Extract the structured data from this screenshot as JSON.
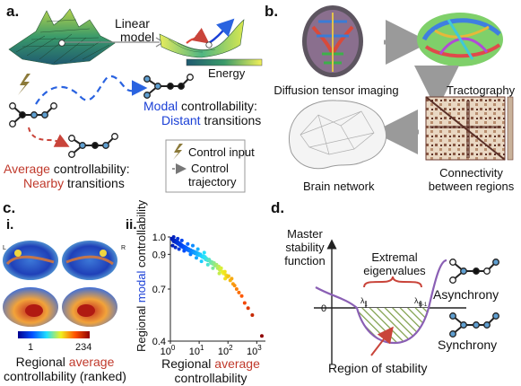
{
  "panels": {
    "a": "a.",
    "b": "b.",
    "c": "c.",
    "c_i": "i.",
    "c_ii": "ii.",
    "d": "d."
  },
  "panel_a": {
    "linear_model_l1": "Linear",
    "linear_model_l2": "model",
    "energy": "Energy",
    "modal_word": "Modal",
    "modal_rest": " controllability:",
    "distant": "Distant",
    "transitions": " transitions",
    "average_word": "Average",
    "average_rest": " controllability:",
    "nearby": "Nearby",
    "nearby_rest": " transitions",
    "legend_input": "Control input",
    "legend_traj_l1": "Control",
    "legend_traj_l2": "trajectory"
  },
  "panel_b": {
    "dti": "Diffusion tensor imaging",
    "tractography": "Tractography",
    "connectivity_l1": "Connectivity",
    "connectivity_l2": "between regions",
    "brain_network": "Brain network"
  },
  "panel_c_i": {
    "L": "L",
    "R": "R",
    "cb_min": "1",
    "cb_max": "234",
    "cap_l1_pre": "Regional ",
    "cap_l1_word": "average",
    "cap_l2": "controllability (ranked)"
  },
  "panel_c_ii": {
    "ylab_pre": "Regional ",
    "ylab_word": "modal",
    "ylab_post": " controllability",
    "xlab_l1_pre": "Regional ",
    "xlab_l1_word": "average",
    "xlab_l2": "controllability",
    "yticks": [
      "1.0",
      "0.9",
      "0.7",
      "0.4"
    ],
    "xticks": [
      "10",
      "10",
      "10",
      "10"
    ],
    "xexp": [
      "0",
      "1",
      "2",
      "3"
    ]
  },
  "panel_d": {
    "y_l1": "Master",
    "y_l2": "stability",
    "y_l3": "function",
    "zero": "0",
    "ext_l1": "Extremal",
    "ext_l2": "eigenvalues",
    "lam1": "λ",
    "lam1_sub": "1",
    "lamN": "λ",
    "lamN_sub": "N-1",
    "asynchrony": "Asynchrony",
    "synchrony": "Synchrony",
    "region": "Region of stability"
  },
  "colors": {
    "blue": "#1a3fd6",
    "red": "#c0392b",
    "purple": "#8a5fb4",
    "green": "#7fa04a",
    "node": "#5f9fd1"
  },
  "chart_data": {
    "type": "scatter",
    "xlabel": "Regional average controllability",
    "ylabel": "Regional modal controllability",
    "xscale": "log",
    "xlim": [
      1,
      2000
    ],
    "ylim": [
      0.4,
      1.0
    ],
    "points": [
      [
        1.1,
        0.99
      ],
      [
        1.2,
        0.985
      ],
      [
        1.3,
        0.975
      ],
      [
        1.4,
        0.98
      ],
      [
        1.5,
        0.97
      ],
      [
        1.6,
        0.975
      ],
      [
        1.7,
        0.965
      ],
      [
        1.8,
        0.97
      ],
      [
        1.9,
        0.96
      ],
      [
        2.0,
        0.965
      ],
      [
        2.1,
        0.955
      ],
      [
        2.2,
        0.96
      ],
      [
        2.3,
        0.95
      ],
      [
        2.4,
        0.955
      ],
      [
        2.5,
        0.945
      ],
      [
        2.6,
        0.95
      ],
      [
        2.8,
        0.94
      ],
      [
        3.0,
        0.945
      ],
      [
        3.2,
        0.935
      ],
      [
        3.4,
        0.94
      ],
      [
        3.6,
        0.93
      ],
      [
        3.8,
        0.935
      ],
      [
        4.0,
        0.925
      ],
      [
        4.3,
        0.93
      ],
      [
        4.6,
        0.92
      ],
      [
        5.0,
        0.925
      ],
      [
        5.4,
        0.915
      ],
      [
        5.8,
        0.92
      ],
      [
        6.2,
        0.91
      ],
      [
        6.8,
        0.915
      ],
      [
        7.3,
        0.905
      ],
      [
        8.0,
        0.91
      ],
      [
        8.6,
        0.9
      ],
      [
        9.3,
        0.905
      ],
      [
        10,
        0.895
      ],
      [
        11,
        0.9
      ],
      [
        12,
        0.89
      ],
      [
        13,
        0.885
      ],
      [
        14,
        0.89
      ],
      [
        15,
        0.88
      ],
      [
        16,
        0.885
      ],
      [
        17,
        0.87
      ],
      [
        18,
        0.875
      ],
      [
        20,
        0.865
      ],
      [
        22,
        0.87
      ],
      [
        24,
        0.86
      ],
      [
        26,
        0.85
      ],
      [
        28,
        0.855
      ],
      [
        30,
        0.845
      ],
      [
        33,
        0.85
      ],
      [
        36,
        0.835
      ],
      [
        40,
        0.84
      ],
      [
        44,
        0.82
      ],
      [
        48,
        0.83
      ],
      [
        52,
        0.81
      ],
      [
        58,
        0.82
      ],
      [
        64,
        0.8
      ],
      [
        70,
        0.79
      ],
      [
        78,
        0.8
      ],
      [
        86,
        0.78
      ],
      [
        95,
        0.77
      ],
      [
        105,
        0.775
      ],
      [
        120,
        0.75
      ],
      [
        135,
        0.76
      ],
      [
        150,
        0.73
      ],
      [
        170,
        0.72
      ],
      [
        200,
        0.7
      ],
      [
        240,
        0.68
      ],
      [
        300,
        0.66
      ],
      [
        380,
        0.62
      ],
      [
        500,
        0.59
      ],
      [
        700,
        0.55
      ],
      [
        1500,
        0.43
      ],
      [
        1.2,
        0.95
      ],
      [
        1.5,
        0.94
      ],
      [
        2.0,
        0.93
      ],
      [
        3.0,
        0.92
      ],
      [
        5.0,
        0.9
      ],
      [
        8.0,
        0.88
      ],
      [
        12,
        0.86
      ],
      [
        20,
        0.84
      ],
      [
        30,
        0.82
      ],
      [
        50,
        0.79
      ],
      [
        80,
        0.76
      ],
      [
        1.3,
        1.0
      ],
      [
        1.8,
        0.99
      ],
      [
        2.5,
        0.98
      ],
      [
        4,
        0.96
      ],
      [
        6,
        0.95
      ],
      [
        9,
        0.93
      ],
      [
        15,
        0.91
      ]
    ]
  }
}
